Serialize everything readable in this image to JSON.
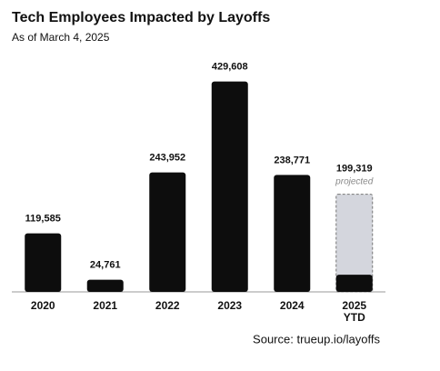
{
  "chart_data": {
    "type": "bar",
    "title": "Tech Employees Impacted by Layoffs",
    "subtitle": "As of March 4, 2025",
    "source": "Source: trueup.io/layoffs",
    "categories": [
      "2020",
      "2021",
      "2022",
      "2023",
      "2024",
      "2025 YTD"
    ],
    "values": [
      119585,
      24761,
      243952,
      429608,
      238771,
      35000
    ],
    "value_labels": [
      "119,585",
      "24,761",
      "243,952",
      "429,608",
      "238,771",
      null
    ],
    "color": "#0d0d0d",
    "projected": {
      "label": "projected",
      "values": [
        null,
        null,
        null,
        null,
        null,
        199319
      ],
      "value_labels": [
        null,
        null,
        null,
        null,
        null,
        "199,319"
      ],
      "color": "#d4d6dd"
    },
    "ylim": [
      0,
      440000
    ]
  }
}
